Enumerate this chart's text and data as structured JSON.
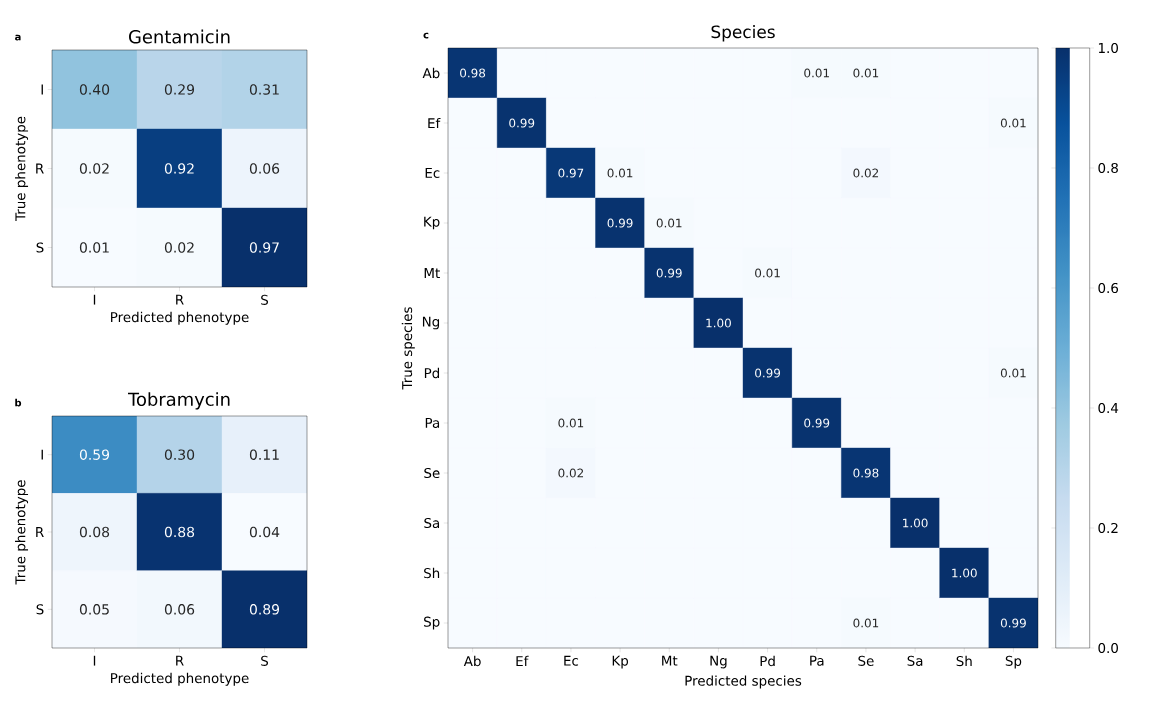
{
  "chart_data": [
    {
      "type": "heatmap",
      "title": "Gentamicin",
      "xlabel": "Predicted phenotype",
      "ylabel": "True phenotype",
      "annotations": [
        "a"
      ],
      "categories": [
        "I",
        "R",
        "S"
      ],
      "y_categories": [
        "I",
        "R",
        "S"
      ],
      "cells": [
        [
          0.4,
          0.29,
          0.31
        ],
        [
          0.02,
          0.92,
          0.06
        ],
        [
          0.01,
          0.02,
          0.97
        ]
      ],
      "cell_labels": [
        [
          "0.40",
          "0.29",
          "0.31"
        ],
        [
          "0.02",
          "0.92",
          "0.06"
        ],
        [
          "0.01",
          "0.02",
          "0.97"
        ]
      ]
    },
    {
      "type": "heatmap",
      "title": "Tobramycin",
      "xlabel": "Predicted phenotype",
      "ylabel": "True phenotype",
      "annotations": [
        "b"
      ],
      "categories": [
        "I",
        "R",
        "S"
      ],
      "y_categories": [
        "I",
        "R",
        "S"
      ],
      "cells": [
        [
          0.59,
          0.3,
          0.11
        ],
        [
          0.08,
          0.88,
          0.04
        ],
        [
          0.05,
          0.06,
          0.89
        ]
      ],
      "cell_labels": [
        [
          "0.59",
          "0.30",
          "0.11"
        ],
        [
          "0.08",
          "0.88",
          "0.04"
        ],
        [
          "0.05",
          "0.06",
          "0.89"
        ]
      ]
    },
    {
      "type": "heatmap",
      "title": "Species",
      "xlabel": "Predicted species",
      "ylabel": "True species",
      "annotations": [
        "c"
      ],
      "categories": [
        "Ab",
        "Ef",
        "Ec",
        "Kp",
        "Mt",
        "Ng",
        "Pd",
        "Pa",
        "Se",
        "Sa",
        "Sh",
        "Sp"
      ],
      "y_categories": [
        "Ab",
        "Ef",
        "Ec",
        "Kp",
        "Mt",
        "Ng",
        "Pd",
        "Pa",
        "Se",
        "Sa",
        "Sh",
        "Sp"
      ],
      "cells": [
        [
          0.98,
          0,
          0,
          0,
          0,
          0,
          0,
          0.01,
          0.01,
          0,
          0,
          0
        ],
        [
          0,
          0.99,
          0,
          0,
          0,
          0,
          0,
          0,
          0,
          0,
          0,
          0.01
        ],
        [
          0,
          0,
          0.97,
          0.01,
          0,
          0,
          0,
          0,
          0.02,
          0,
          0,
          0
        ],
        [
          0,
          0,
          0,
          0.99,
          0.01,
          0,
          0,
          0,
          0,
          0,
          0,
          0
        ],
        [
          0,
          0,
          0,
          0,
          0.99,
          0,
          0.01,
          0,
          0,
          0,
          0,
          0
        ],
        [
          0,
          0,
          0,
          0,
          0,
          1.0,
          0,
          0,
          0,
          0,
          0,
          0
        ],
        [
          0,
          0,
          0,
          0,
          0,
          0,
          0.99,
          0,
          0,
          0,
          0,
          0.01
        ],
        [
          0,
          0,
          0.01,
          0,
          0,
          0,
          0,
          0.99,
          0,
          0,
          0,
          0
        ],
        [
          0,
          0,
          0.02,
          0,
          0,
          0,
          0,
          0,
          0.98,
          0,
          0,
          0
        ],
        [
          0,
          0,
          0,
          0,
          0,
          0,
          0,
          0,
          0,
          1.0,
          0,
          0
        ],
        [
          0,
          0,
          0,
          0,
          0,
          0,
          0,
          0,
          0,
          0,
          1.0,
          0
        ],
        [
          0,
          0,
          0,
          0,
          0,
          0,
          0,
          0,
          0.01,
          0,
          0,
          0.99
        ]
      ],
      "cell_labels": [
        [
          "0.98",
          null,
          null,
          null,
          null,
          null,
          null,
          "0.01",
          "0.01",
          null,
          null,
          null
        ],
        [
          null,
          "0.99",
          null,
          null,
          null,
          null,
          null,
          null,
          null,
          null,
          null,
          "0.01"
        ],
        [
          null,
          null,
          "0.97",
          "0.01",
          null,
          null,
          null,
          null,
          "0.02",
          null,
          null,
          null
        ],
        [
          null,
          null,
          null,
          "0.99",
          "0.01",
          null,
          null,
          null,
          null,
          null,
          null,
          null
        ],
        [
          null,
          null,
          null,
          null,
          "0.99",
          null,
          "0.01",
          null,
          null,
          null,
          null,
          null
        ],
        [
          null,
          null,
          null,
          null,
          null,
          "1.00",
          null,
          null,
          null,
          null,
          null,
          null
        ],
        [
          null,
          null,
          null,
          null,
          null,
          null,
          "0.99",
          null,
          null,
          null,
          null,
          "0.01"
        ],
        [
          null,
          null,
          "0.01",
          null,
          null,
          null,
          null,
          "0.99",
          null,
          null,
          null,
          null
        ],
        [
          null,
          null,
          "0.02",
          null,
          null,
          null,
          null,
          null,
          "0.98",
          null,
          null,
          null
        ],
        [
          null,
          null,
          null,
          null,
          null,
          null,
          null,
          null,
          null,
          "1.00",
          null,
          null
        ],
        [
          null,
          null,
          null,
          null,
          null,
          null,
          null,
          null,
          null,
          null,
          "1.00",
          null
        ],
        [
          null,
          null,
          null,
          null,
          null,
          null,
          null,
          null,
          "0.01",
          null,
          null,
          "0.99"
        ]
      ],
      "clim": [
        0,
        1
      ],
      "cticks": [
        {
          "value": 0,
          "label": "0.0"
        },
        {
          "value": 0.2,
          "label": "0.2"
        },
        {
          "value": 0.4,
          "label": "0.4"
        },
        {
          "value": 0.6,
          "label": "0.6"
        },
        {
          "value": 0.8,
          "label": "0.8"
        },
        {
          "value": 1,
          "label": "1.0"
        }
      ]
    }
  ]
}
